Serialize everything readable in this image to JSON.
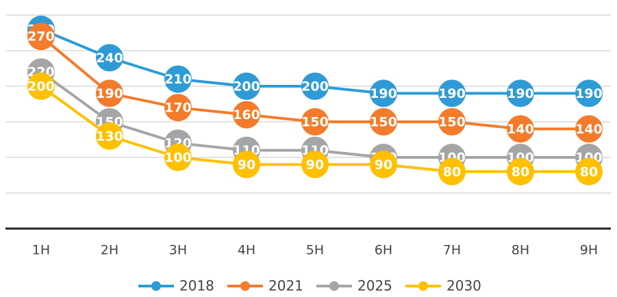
{
  "chart_data": {
    "type": "line",
    "categories": [
      "1H",
      "2H",
      "3H",
      "4H",
      "5H",
      "6H",
      "7H",
      "8H",
      "9H"
    ],
    "series": [
      {
        "name": "2018",
        "color": "#2e9bd6",
        "values": [
          280,
          240,
          210,
          200,
          200,
          190,
          190,
          190,
          190
        ]
      },
      {
        "name": "2021",
        "color": "#f47b2a",
        "values": [
          270,
          190,
          170,
          160,
          150,
          150,
          150,
          140,
          140
        ]
      },
      {
        "name": "2025",
        "color": "#a5a5a5",
        "values": [
          220,
          150,
          120,
          110,
          110,
          100,
          100,
          100,
          100
        ]
      },
      {
        "name": "2030",
        "color": "#ffc000",
        "values": [
          200,
          130,
          100,
          90,
          90,
          90,
          80,
          80,
          80
        ]
      }
    ],
    "ylim": [
      0,
      300
    ],
    "yticks": [
      0,
      50,
      100,
      150,
      200,
      250,
      300
    ],
    "grid": true,
    "legend": "bottom"
  }
}
